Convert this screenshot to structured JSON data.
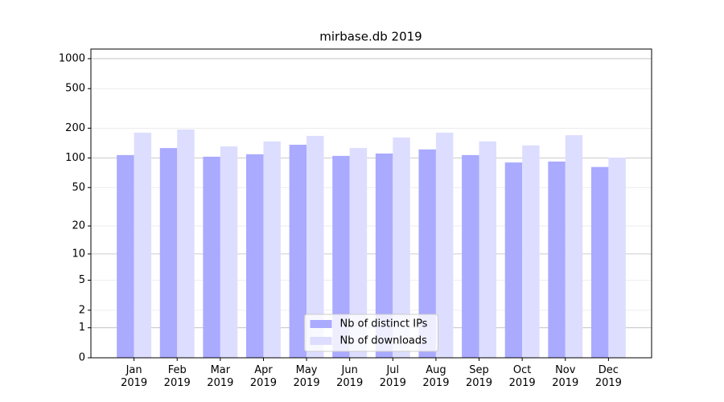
{
  "chart_data": {
    "type": "bar",
    "title": "mirbase.db 2019",
    "categories": [
      "Jan\n2019",
      "Feb\n2019",
      "Mar\n2019",
      "Apr\n2019",
      "May\n2019",
      "Jun\n2019",
      "Jul\n2019",
      "Aug\n2019",
      "Sep\n2019",
      "Oct\n2019",
      "Nov\n2019",
      "Dec\n2019"
    ],
    "series": [
      {
        "name": "Nb of distinct IPs",
        "color": "#aaaaff",
        "values": [
          107,
          126,
          103,
          109,
          136,
          105,
          111,
          122,
          107,
          90,
          92,
          81
        ]
      },
      {
        "name": "Nb of downloads",
        "color": "#ddddff",
        "values": [
          180,
          194,
          131,
          147,
          167,
          126,
          161,
          180,
          147,
          134,
          170,
          101
        ]
      }
    ],
    "yscale": "log1p",
    "ylim": [
      0,
      1249
    ],
    "yticks": [
      0,
      1,
      2,
      5,
      10,
      20,
      50,
      100,
      200,
      500,
      1000
    ],
    "grid": true,
    "legend": "lower center"
  }
}
